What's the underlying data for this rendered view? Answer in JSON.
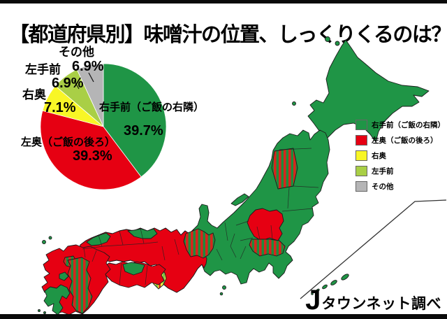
{
  "page": {
    "title": "【都道府県別】味噌汁の位置、しっくりくるのは？"
  },
  "source_logo": {
    "j": "J",
    "text": "タウンネット調べ"
  },
  "palette": {
    "green": "#1f9546",
    "red": "#e60012",
    "yellow": "#f8f626",
    "yellow_green": "#a9cf46",
    "gray": "#b5b5b6",
    "stripe_red": "#d6251d",
    "stripe_green": "#1f8b3b",
    "stripe_yellow": "#f2ea3a",
    "stripe_lgreen": "#7ec24a"
  },
  "chart_data": {
    "type": "pie",
    "title": "味噌汁の位置、しっくりくるのは？（都道府県別）",
    "legend_position": "right",
    "slices": [
      {
        "label": "右手前（ご飯の右隣）",
        "value": 39.7,
        "pct_label": "39.7%",
        "color": "#1f9546"
      },
      {
        "label": "左奥（ご飯の後ろ）",
        "value": 39.3,
        "pct_label": "39.3%",
        "color": "#e60012"
      },
      {
        "label": "右奥",
        "value": 7.1,
        "pct_label": "7.1%",
        "color": "#f8f626"
      },
      {
        "label": "左手前",
        "value": 6.9,
        "pct_label": "6.9%",
        "color": "#a9cf46"
      },
      {
        "label": "その他",
        "value": 6.9,
        "pct_label": "6.9%",
        "color": "#b5b5b6"
      }
    ]
  },
  "legend": {
    "items": [
      {
        "label": "右手前（ご飯の右隣）",
        "color": "green"
      },
      {
        "label": "左奥（ご飯の後ろ）",
        "color": "red"
      },
      {
        "label": "右奥",
        "color": "yellow"
      },
      {
        "label": "左手前",
        "color": "yellow_green"
      },
      {
        "label": "その他",
        "color": "gray"
      }
    ]
  },
  "map": {
    "regions": [
      {
        "name": "Hokkaido",
        "fill": "green"
      },
      {
        "name": "Tohoku (most)",
        "fill": "green"
      },
      {
        "name": "Akita area",
        "fill": "red-green-stripes"
      },
      {
        "name": "Fukushima area",
        "fill": "red"
      },
      {
        "name": "Kanto (most)",
        "fill": "green"
      },
      {
        "name": "Ibaraki-Saitama area",
        "fill": "red-green-stripes"
      },
      {
        "name": "Niigata / Nagano / Shizuoka",
        "fill": "green"
      },
      {
        "name": "Ishikawa-Gifu-Shiga band",
        "fill": "red-green-stripes"
      },
      {
        "name": "Kinki & Chugoku (most)",
        "fill": "red"
      },
      {
        "name": "Shimane coast",
        "fill": "green"
      },
      {
        "name": "Tottori coast",
        "fill": "green"
      },
      {
        "name": "Wakayama area",
        "fill": "yellow-green-red-stripes"
      },
      {
        "name": "Shikoku (most)",
        "fill": "red"
      },
      {
        "name": "Kagawa area",
        "fill": "green"
      },
      {
        "name": "Kyushu north & east",
        "fill": "red"
      },
      {
        "name": "Kyushu central band",
        "fill": "red-green-stripes"
      },
      {
        "name": "Saga area",
        "fill": "red-green-stripes"
      },
      {
        "name": "Kagoshima area",
        "fill": "green"
      },
      {
        "name": "Okinawa islands",
        "fill": "green"
      }
    ]
  }
}
